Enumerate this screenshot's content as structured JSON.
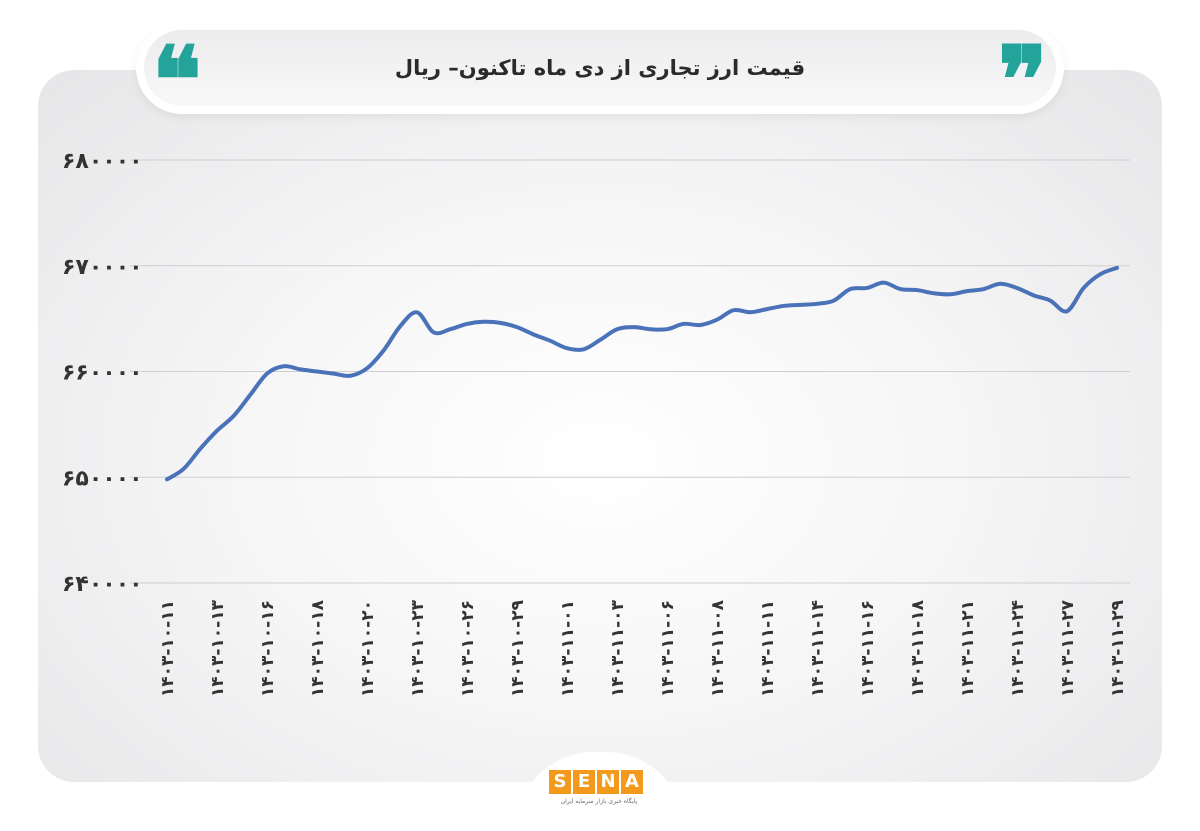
{
  "header": {
    "title": "قیمت ارز تجاری از دی ماه تاکنون– ریال",
    "quote_left_glyph": "❝",
    "quote_right_glyph": "❞",
    "quote_color": "#23a39a"
  },
  "logo": {
    "letters": [
      "S",
      "E",
      "N",
      "A"
    ],
    "tagline": "پایگاه خبری بازار سرمایه ایران",
    "color": "#f39a1d"
  },
  "chart_data": {
    "type": "line",
    "title": "قیمت ارز تجاری از دی ماه تاکنون– ریال",
    "xlabel": "",
    "ylabel": "",
    "ylim": [
      640000,
      680000
    ],
    "yticks": [
      640000,
      650000,
      660000,
      670000,
      680000
    ],
    "ytick_labels": [
      "۶۴۰۰۰۰",
      "۶۵۰۰۰۰",
      "۶۶۰۰۰۰",
      "۶۷۰۰۰۰",
      "۶۸۰۰۰۰"
    ],
    "grid": true,
    "line_color": "#4a72b8",
    "x_tick_labels": [
      "۱۴۰۳-۱۰-۱۱",
      "۱۴۰۳-۱۰-۱۳",
      "۱۴۰۳-۱۰-۱۶",
      "۱۴۰۳-۱۰-۱۸",
      "۱۴۰۳-۱۰-۲۰",
      "۱۴۰۳-۱۰-۲۳",
      "۱۴۰۳-۱۰-۲۶",
      "۱۴۰۳-۱۰-۲۹",
      "۱۴۰۳-۱۱-۰۱",
      "۱۴۰۳-۱۱-۰۳",
      "۱۴۰۳-۱۱-۰۶",
      "۱۴۰۳-۱۱-۰۸",
      "۱۴۰۳-۱۱-۱۱",
      "۱۴۰۳-۱۱-۱۴",
      "۱۴۰۳-۱۱-۱۶",
      "۱۴۰۳-۱۱-۱۸",
      "۱۴۰۳-۱۱-۲۱",
      "۱۴۰۳-۱۱-۲۴",
      "۱۴۰۳-۱۱-۲۷",
      "۱۴۰۳-۱۱-۲۹"
    ],
    "series": [
      {
        "values": [
          649800,
          650800,
          652700,
          654400,
          655800,
          657800,
          659800,
          660500,
          660200,
          660000,
          659800,
          659600,
          660300,
          662000,
          664300,
          665600,
          663700,
          664000,
          664500,
          664700,
          664600,
          664200,
          663500,
          662900,
          662200,
          662100,
          663000,
          664000,
          664200,
          664000,
          664000,
          664500,
          664400,
          664900,
          665800,
          665600,
          665900,
          666200,
          666300,
          666400,
          666700,
          667800,
          667900,
          668400,
          667800,
          667700,
          667400,
          667300,
          667600,
          667800,
          668300,
          667900,
          667200,
          666700,
          665700,
          667900,
          669200,
          669800
        ]
      }
    ]
  }
}
